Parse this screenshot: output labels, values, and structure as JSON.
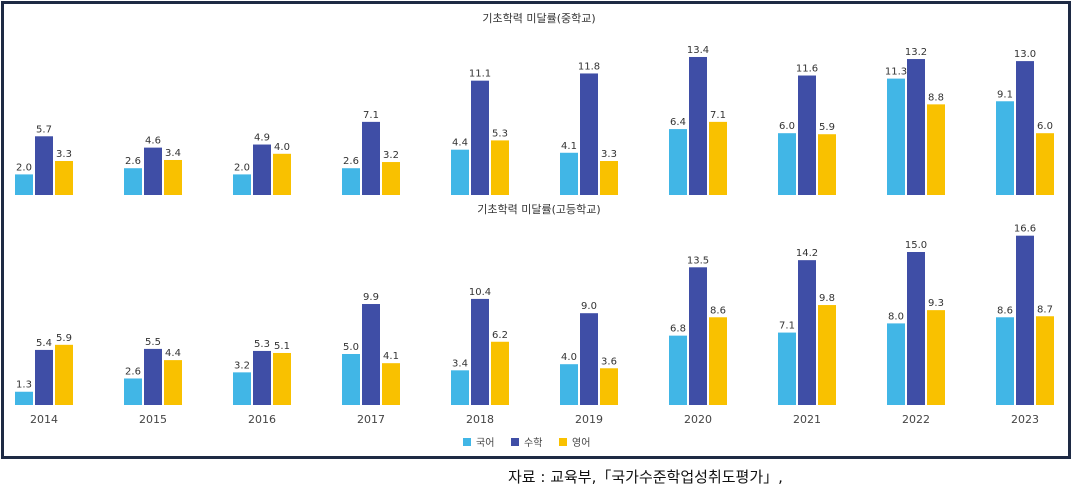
{
  "chart_data": [
    {
      "type": "bar",
      "title": "기초학력 미달률(중학교)",
      "categories": [
        "2014",
        "2015",
        "2016",
        "2017",
        "2018",
        "2019",
        "2020",
        "2021",
        "2022",
        "2023"
      ],
      "series": [
        {
          "name": "국어",
          "color": "#41b6e6",
          "values": [
            2.0,
            2.6,
            2.0,
            2.6,
            4.4,
            4.1,
            6.4,
            6.0,
            11.3,
            9.1
          ]
        },
        {
          "name": "수학",
          "color": "#3f4ea6",
          "values": [
            5.7,
            4.6,
            4.9,
            7.1,
            11.1,
            11.8,
            13.4,
            11.6,
            13.2,
            13.0
          ]
        },
        {
          "name": "영어",
          "color": "#f9c100",
          "values": [
            3.3,
            3.4,
            4.0,
            3.2,
            5.3,
            3.3,
            7.1,
            5.9,
            8.8,
            6.0
          ]
        }
      ],
      "ylim": [
        0,
        14
      ],
      "grid": false
    },
    {
      "type": "bar",
      "title": "기초학력 미달률(고등학교)",
      "categories": [
        "2014",
        "2015",
        "2016",
        "2017",
        "2018",
        "2019",
        "2020",
        "2021",
        "2022",
        "2023"
      ],
      "series": [
        {
          "name": "국어",
          "color": "#41b6e6",
          "values": [
            1.3,
            2.6,
            3.2,
            5.0,
            3.4,
            4.0,
            6.8,
            7.1,
            8.0,
            8.6
          ]
        },
        {
          "name": "수학",
          "color": "#3f4ea6",
          "values": [
            5.4,
            5.5,
            5.3,
            9.9,
            10.4,
            9.0,
            13.5,
            14.2,
            15.0,
            16.6
          ]
        },
        {
          "name": "영어",
          "color": "#f9c100",
          "values": [
            5.9,
            4.4,
            5.1,
            4.1,
            6.2,
            3.6,
            8.6,
            9.8,
            9.3,
            8.7
          ]
        }
      ],
      "ylim": [
        0,
        17
      ],
      "grid": false
    }
  ],
  "legend": {
    "placement": "bottom-center",
    "items": [
      {
        "label": "국어",
        "color": "#41b6e6"
      },
      {
        "label": "수학",
        "color": "#3f4ea6"
      },
      {
        "label": "영어",
        "color": "#f9c100"
      }
    ]
  },
  "source_note": "자료 : 교육부,「국가수준학업성취도평가」,"
}
